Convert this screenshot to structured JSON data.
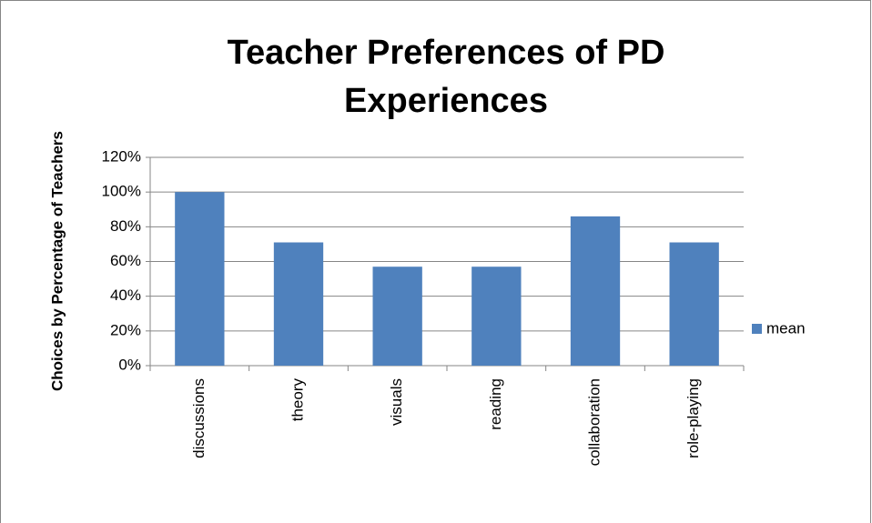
{
  "chart_data": {
    "type": "bar",
    "title": "Teacher Preferences of PD Experiences",
    "y_label": "Choices by Percentage of Teachers",
    "categories": [
      "discussions",
      "theory",
      "visuals",
      "reading",
      "collaboration",
      "role-playing"
    ],
    "series": [
      {
        "name": "mean",
        "color": "#4f81bd",
        "values": [
          100,
          71,
          57,
          57,
          86,
          71
        ]
      }
    ],
    "ylim": [
      0,
      120
    ],
    "yticks": [
      {
        "value": 0,
        "label": "0%"
      },
      {
        "value": 20,
        "label": "20%"
      },
      {
        "value": 40,
        "label": "40%"
      },
      {
        "value": 60,
        "label": "60%"
      },
      {
        "value": 80,
        "label": "80%"
      },
      {
        "value": 100,
        "label": "100%"
      },
      {
        "value": 120,
        "label": "120%"
      }
    ],
    "grid": true,
    "legend": "right"
  }
}
